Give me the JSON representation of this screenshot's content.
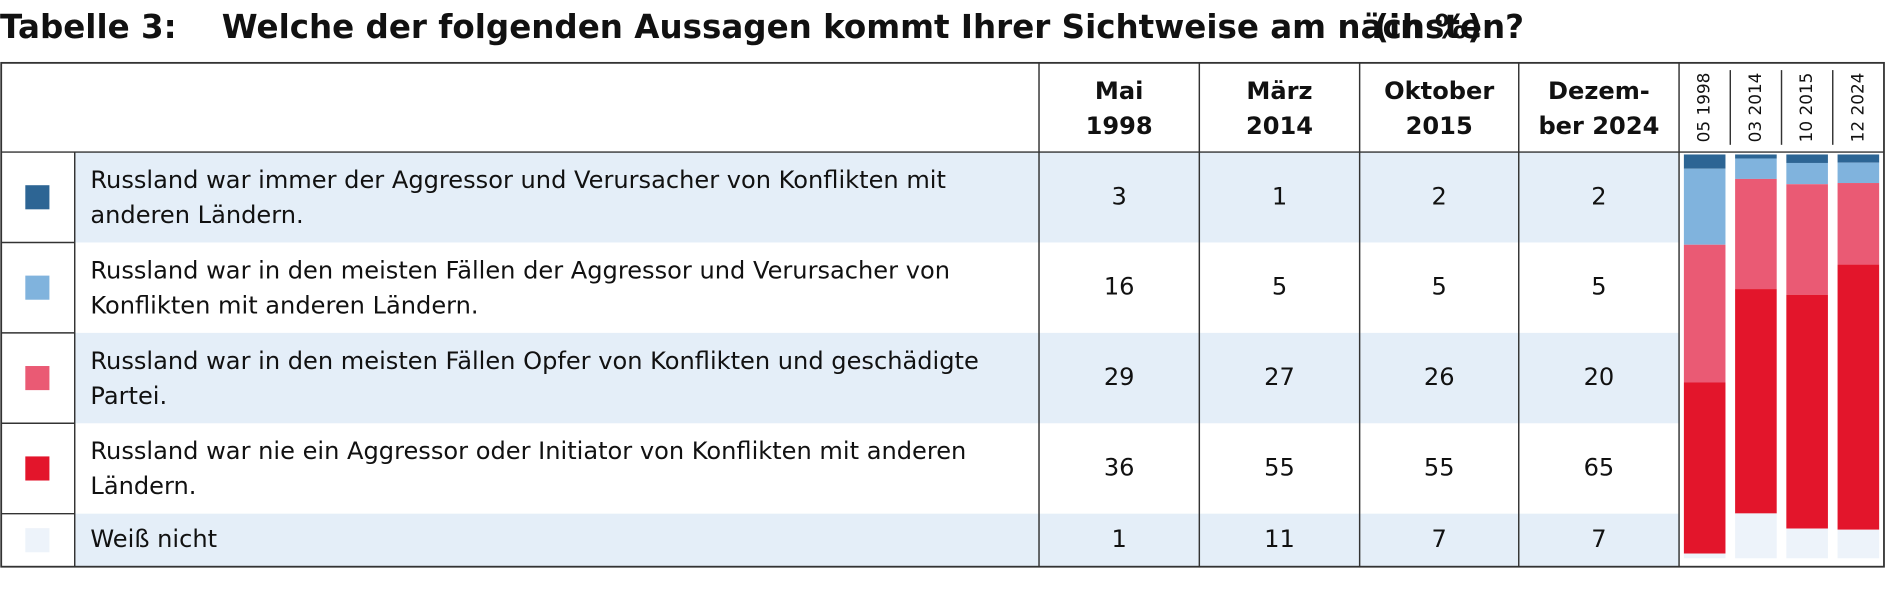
{
  "header": {
    "label": "Tabelle 3:",
    "title": "Welche der folgenden Aussagen kommt Ihrer Sichtweise am nächsten?",
    "unit": "(in %)"
  },
  "table": {
    "columns": [
      [
        "Mai",
        "1998"
      ],
      [
        "März",
        "2014"
      ],
      [
        "Oktober",
        "2015"
      ],
      [
        "Dezem-",
        "ber 2024"
      ]
    ],
    "chart_columns": [
      "05 1998",
      "03 2014",
      "10 2015",
      "12 2024"
    ],
    "rows": [
      {
        "label": [
          "Russland war immer der Aggressor und Verursacher von Konflikten mit",
          "anderen Ländern."
        ],
        "color": "#2d6594",
        "values": [
          3,
          1,
          2,
          2
        ]
      },
      {
        "label": [
          "Russland war in den meisten Fällen der Aggressor und Verursacher von",
          "Konflikten mit anderen Ländern."
        ],
        "color": "#80b3dd",
        "values": [
          16,
          5,
          5,
          5
        ]
      },
      {
        "label": [
          "Russland war in den meisten Fällen Opfer von Konflikten und geschädigte",
          "Partei."
        ],
        "color": "#ea5a74",
        "values": [
          29,
          27,
          26,
          20
        ]
      },
      {
        "label": [
          "Russland war nie ein Aggressor oder Initiator von Konflikten mit anderen",
          "Ländern."
        ],
        "color": "#e3152b",
        "values": [
          36,
          55,
          55,
          65
        ]
      },
      {
        "label": [
          "Weiß nicht"
        ],
        "color": "#edf3fa",
        "values": [
          1,
          11,
          7,
          7
        ]
      }
    ]
  }
}
